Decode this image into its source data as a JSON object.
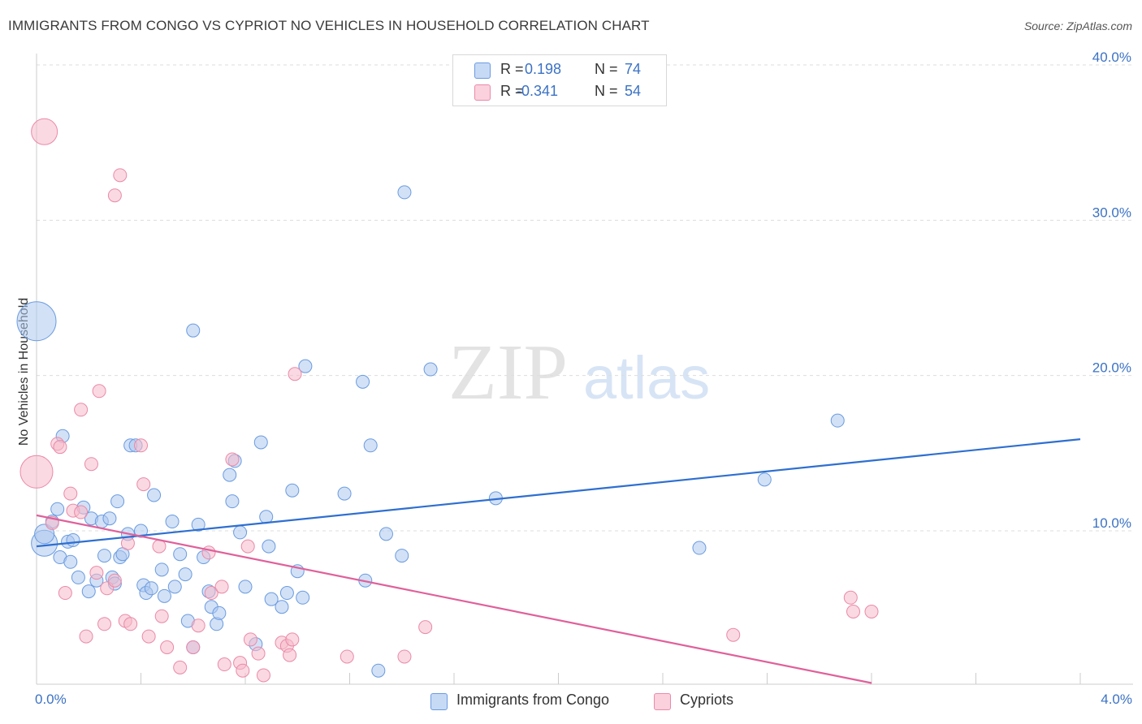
{
  "header": {
    "title": "IMMIGRANTS FROM CONGO VS CYPRIOT NO VEHICLES IN HOUSEHOLD CORRELATION CHART",
    "source": "Source: ZipAtlas.com"
  },
  "watermark": {
    "zip": "ZIP",
    "atlas": "atlas"
  },
  "legend_top": {
    "rows": [
      {
        "r_key": "R =",
        "r_value": "0.198",
        "n_key": "N =",
        "n_value": "74"
      },
      {
        "r_key": "R =",
        "r_value": "-0.341",
        "n_key": "N =",
        "n_value": "54"
      }
    ]
  },
  "legend_bottom": {
    "items": [
      "Immigrants from Congo",
      "Cypriots"
    ]
  },
  "colors": {
    "congo_fill": "#adc8ef",
    "congo_stroke": "#6a9be0",
    "congo_line": "#2e6fd0",
    "cypriot_fill": "#f6b9cb",
    "cypriot_stroke": "#ea8aa8",
    "cypriot_line": "#e0609a",
    "axis_text": "#3b72c4",
    "grid": "#dddddd"
  },
  "chart_data": {
    "type": "scatter",
    "title": "IMMIGRANTS FROM CONGO VS CYPRIOT NO VEHICLES IN HOUSEHOLD CORRELATION CHART",
    "xlabel": "",
    "ylabel": "No Vehicles in Household",
    "xlim": [
      0,
      4.0
    ],
    "ylim": [
      0,
      42
    ],
    "x_tick_labels": [
      "0.0%",
      "4.0%"
    ],
    "y_ticks": [
      10,
      20,
      30,
      40
    ],
    "y_tick_labels": [
      "10.0%",
      "20.0%",
      "30.0%",
      "40.0%"
    ],
    "grid": true,
    "legend_position": "top-center",
    "series": [
      {
        "name": "Immigrants from Congo",
        "r": 0.198,
        "n": 74,
        "trend": {
          "x": [
            0,
            4.0
          ],
          "y": [
            9.0,
            15.9
          ]
        },
        "points": [
          [
            0.0,
            23.5,
            3
          ],
          [
            0.03,
            9.2,
            2
          ],
          [
            0.03,
            9.8,
            1.5
          ],
          [
            0.06,
            10.6,
            1
          ],
          [
            0.08,
            11.4,
            1
          ],
          [
            0.09,
            8.3,
            1
          ],
          [
            0.1,
            16.1,
            1
          ],
          [
            0.12,
            9.3,
            1
          ],
          [
            0.13,
            8.0,
            1
          ],
          [
            0.14,
            9.4,
            1
          ],
          [
            0.16,
            7.0,
            1
          ],
          [
            0.18,
            11.5,
            1
          ],
          [
            0.2,
            6.1,
            1
          ],
          [
            0.21,
            10.8,
            1
          ],
          [
            0.23,
            6.8,
            1
          ],
          [
            0.25,
            10.6,
            1
          ],
          [
            0.26,
            8.4,
            1
          ],
          [
            0.28,
            10.8,
            1
          ],
          [
            0.29,
            7.0,
            1
          ],
          [
            0.3,
            6.6,
            1
          ],
          [
            0.31,
            11.9,
            1
          ],
          [
            0.32,
            8.3,
            1
          ],
          [
            0.33,
            8.5,
            1
          ],
          [
            0.35,
            9.8,
            1
          ],
          [
            0.36,
            15.5,
            1
          ],
          [
            0.38,
            15.5,
            1
          ],
          [
            0.4,
            10.0,
            1
          ],
          [
            0.41,
            6.5,
            1
          ],
          [
            0.42,
            6.0,
            1
          ],
          [
            0.44,
            6.3,
            1
          ],
          [
            0.45,
            12.3,
            1
          ],
          [
            0.48,
            7.5,
            1
          ],
          [
            0.49,
            5.8,
            1
          ],
          [
            0.52,
            10.6,
            1
          ],
          [
            0.53,
            6.4,
            1
          ],
          [
            0.55,
            8.5,
            1
          ],
          [
            0.57,
            7.2,
            1
          ],
          [
            0.58,
            4.2,
            1
          ],
          [
            0.6,
            2.5,
            1
          ],
          [
            0.6,
            22.9,
            1
          ],
          [
            0.62,
            10.4,
            1
          ],
          [
            0.64,
            8.3,
            1
          ],
          [
            0.66,
            6.1,
            1
          ],
          [
            0.67,
            5.1,
            1
          ],
          [
            0.69,
            4.0,
            1
          ],
          [
            0.7,
            4.7,
            1
          ],
          [
            0.74,
            13.6,
            1
          ],
          [
            0.75,
            11.9,
            1
          ],
          [
            0.76,
            14.5,
            1
          ],
          [
            0.78,
            9.9,
            1
          ],
          [
            0.8,
            6.4,
            1
          ],
          [
            0.84,
            2.7,
            1
          ],
          [
            0.86,
            15.7,
            1
          ],
          [
            0.88,
            10.9,
            1
          ],
          [
            0.89,
            9.0,
            1
          ],
          [
            0.9,
            5.6,
            1
          ],
          [
            0.94,
            5.1,
            1
          ],
          [
            0.96,
            6.0,
            1
          ],
          [
            0.98,
            12.6,
            1
          ],
          [
            1.0,
            7.4,
            1
          ],
          [
            1.02,
            5.7,
            1
          ],
          [
            1.03,
            20.6,
            1
          ],
          [
            1.18,
            12.4,
            1
          ],
          [
            1.25,
            19.6,
            1
          ],
          [
            1.26,
            6.8,
            1
          ],
          [
            1.28,
            15.5,
            1
          ],
          [
            1.31,
            1.0,
            1
          ],
          [
            1.34,
            9.8,
            1
          ],
          [
            1.4,
            8.4,
            1
          ],
          [
            1.41,
            31.8,
            1
          ],
          [
            1.51,
            20.4,
            1
          ],
          [
            1.76,
            12.1,
            1
          ],
          [
            2.54,
            8.9,
            1
          ],
          [
            2.79,
            13.3,
            1
          ],
          [
            3.07,
            17.1,
            1
          ]
        ]
      },
      {
        "name": "Cypriots",
        "r": -0.341,
        "n": 54,
        "trend": {
          "x": [
            0,
            3.2
          ],
          "y": [
            11.0,
            0.2
          ]
        },
        "points": [
          [
            0.0,
            13.8,
            2.5
          ],
          [
            0.03,
            35.7,
            2
          ],
          [
            0.06,
            10.5,
            1
          ],
          [
            0.08,
            15.6,
            1
          ],
          [
            0.09,
            15.4,
            1
          ],
          [
            0.11,
            6.0,
            1
          ],
          [
            0.13,
            12.4,
            1
          ],
          [
            0.14,
            11.3,
            1
          ],
          [
            0.17,
            11.2,
            1
          ],
          [
            0.17,
            17.8,
            1
          ],
          [
            0.19,
            3.2,
            1
          ],
          [
            0.21,
            14.3,
            1
          ],
          [
            0.23,
            7.3,
            1
          ],
          [
            0.24,
            19.0,
            1
          ],
          [
            0.26,
            4.0,
            1
          ],
          [
            0.27,
            6.3,
            1
          ],
          [
            0.3,
            6.8,
            1
          ],
          [
            0.3,
            31.6,
            1
          ],
          [
            0.32,
            32.9,
            1
          ],
          [
            0.34,
            4.2,
            1
          ],
          [
            0.35,
            9.2,
            1
          ],
          [
            0.36,
            4.0,
            1
          ],
          [
            0.4,
            15.5,
            1
          ],
          [
            0.41,
            13.0,
            1
          ],
          [
            0.43,
            3.2,
            1
          ],
          [
            0.47,
            9.0,
            1
          ],
          [
            0.48,
            4.5,
            1
          ],
          [
            0.5,
            2.5,
            1
          ],
          [
            0.55,
            1.2,
            1
          ],
          [
            0.6,
            2.5,
            1
          ],
          [
            0.62,
            3.9,
            1
          ],
          [
            0.66,
            8.6,
            1
          ],
          [
            0.67,
            6.0,
            1
          ],
          [
            0.71,
            6.4,
            1
          ],
          [
            0.72,
            1.4,
            1
          ],
          [
            0.75,
            14.6,
            1
          ],
          [
            0.78,
            1.5,
            1
          ],
          [
            0.79,
            1.0,
            1
          ],
          [
            0.81,
            9.0,
            1
          ],
          [
            0.82,
            3.0,
            1
          ],
          [
            0.85,
            2.1,
            1
          ],
          [
            0.87,
            0.7,
            1
          ],
          [
            0.94,
            2.8,
            1
          ],
          [
            0.96,
            2.6,
            1
          ],
          [
            0.98,
            3.0,
            1
          ],
          [
            0.99,
            20.1,
            1
          ],
          [
            1.19,
            1.9,
            1
          ],
          [
            1.41,
            1.9,
            1
          ],
          [
            1.49,
            3.8,
            1
          ],
          [
            2.67,
            3.3,
            1
          ],
          [
            3.12,
            5.7,
            1
          ],
          [
            3.13,
            4.8,
            1
          ],
          [
            3.2,
            4.8,
            1
          ],
          [
            0.97,
            2.0,
            1
          ]
        ]
      }
    ]
  }
}
